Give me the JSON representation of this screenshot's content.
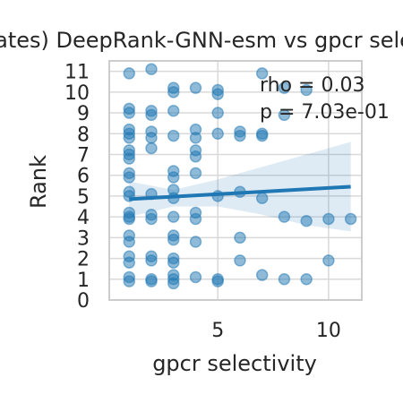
{
  "chart_data": {
    "type": "scatter",
    "title": "(templates) DeepRank-GNN-esm vs gpcr selectivity",
    "xlabel": "gpcr selectivity",
    "ylabel": "Rank",
    "xlim": [
      0.1,
      11.5
    ],
    "ylim": [
      0,
      11.5
    ],
    "xticks": [
      5,
      10
    ],
    "yticks": [
      0,
      1,
      2,
      3,
      4,
      5,
      6,
      7,
      8,
      9,
      10,
      11
    ],
    "grid": true,
    "annotations": [
      "rho = 0.03",
      "p = 7.03e-01"
    ],
    "colors": {
      "point": "#1f77b4",
      "regression_line": "#1f77b4",
      "confidence_band": "#1f77b4",
      "grid": "#d9d9d9",
      "frame": "#cccccc"
    },
    "points": [
      {
        "x": 1,
        "y": 10.9
      },
      {
        "x": 2,
        "y": 11.1
      },
      {
        "x": 7,
        "y": 10.9
      },
      {
        "x": 3,
        "y": 10.2
      },
      {
        "x": 3,
        "y": 10.0
      },
      {
        "x": 4,
        "y": 10.2
      },
      {
        "x": 5,
        "y": 10.1
      },
      {
        "x": 5,
        "y": 9.9
      },
      {
        "x": 8,
        "y": 10.2
      },
      {
        "x": 9,
        "y": 10.1
      },
      {
        "x": 1,
        "y": 9.2
      },
      {
        "x": 1,
        "y": 9.0
      },
      {
        "x": 2,
        "y": 9.1
      },
      {
        "x": 2,
        "y": 8.9
      },
      {
        "x": 3,
        "y": 9.1
      },
      {
        "x": 5,
        "y": 9.0
      },
      {
        "x": 8,
        "y": 8.9
      },
      {
        "x": 1,
        "y": 8.2
      },
      {
        "x": 1,
        "y": 8.0
      },
      {
        "x": 1,
        "y": 7.8
      },
      {
        "x": 2,
        "y": 8.1
      },
      {
        "x": 2,
        "y": 7.8
      },
      {
        "x": 3,
        "y": 7.9
      },
      {
        "x": 4,
        "y": 8.2
      },
      {
        "x": 4,
        "y": 7.8
      },
      {
        "x": 5,
        "y": 8.0
      },
      {
        "x": 6,
        "y": 8.1
      },
      {
        "x": 6,
        "y": 7.9
      },
      {
        "x": 7,
        "y": 8.0
      },
      {
        "x": 7,
        "y": 7.9
      },
      {
        "x": 1,
        "y": 7.2
      },
      {
        "x": 1,
        "y": 7.0
      },
      {
        "x": 1,
        "y": 6.8
      },
      {
        "x": 2,
        "y": 7.3
      },
      {
        "x": 4,
        "y": 7.2
      },
      {
        "x": 4,
        "y": 6.9
      },
      {
        "x": 1,
        "y": 6.1
      },
      {
        "x": 1,
        "y": 5.9
      },
      {
        "x": 3,
        "y": 6.2
      },
      {
        "x": 3,
        "y": 5.9
      },
      {
        "x": 4,
        "y": 6.1
      },
      {
        "x": 1,
        "y": 5.2
      },
      {
        "x": 1,
        "y": 5.0
      },
      {
        "x": 2,
        "y": 5.1
      },
      {
        "x": 3,
        "y": 5.3
      },
      {
        "x": 3,
        "y": 4.9
      },
      {
        "x": 5,
        "y": 5.0
      },
      {
        "x": 6,
        "y": 5.2
      },
      {
        "x": 7,
        "y": 4.9
      },
      {
        "x": 1,
        "y": 4.2
      },
      {
        "x": 1,
        "y": 4.0
      },
      {
        "x": 1,
        "y": 3.9
      },
      {
        "x": 2,
        "y": 4.1
      },
      {
        "x": 2,
        "y": 3.9
      },
      {
        "x": 3,
        "y": 4.0
      },
      {
        "x": 4,
        "y": 4.2
      },
      {
        "x": 4,
        "y": 3.9
      },
      {
        "x": 8,
        "y": 4.0
      },
      {
        "x": 9,
        "y": 3.8
      },
      {
        "x": 10,
        "y": 3.9
      },
      {
        "x": 11,
        "y": 3.9
      },
      {
        "x": 1,
        "y": 3.1
      },
      {
        "x": 1,
        "y": 2.8
      },
      {
        "x": 3,
        "y": 3.1
      },
      {
        "x": 3,
        "y": 2.9
      },
      {
        "x": 4,
        "y": 2.8
      },
      {
        "x": 6,
        "y": 3.0
      },
      {
        "x": 1,
        "y": 2.1
      },
      {
        "x": 1,
        "y": 1.8
      },
      {
        "x": 2,
        "y": 2.1
      },
      {
        "x": 2,
        "y": 1.9
      },
      {
        "x": 3,
        "y": 2.0
      },
      {
        "x": 3,
        "y": 1.8
      },
      {
        "x": 6,
        "y": 1.9
      },
      {
        "x": 10,
        "y": 1.9
      },
      {
        "x": 1,
        "y": 1.1
      },
      {
        "x": 1,
        "y": 0.9
      },
      {
        "x": 2,
        "y": 1.0
      },
      {
        "x": 2,
        "y": 0.9
      },
      {
        "x": 3,
        "y": 1.2
      },
      {
        "x": 3,
        "y": 1.0
      },
      {
        "x": 3,
        "y": 0.8
      },
      {
        "x": 4,
        "y": 1.1
      },
      {
        "x": 5,
        "y": 0.9
      },
      {
        "x": 5,
        "y": 1.0
      },
      {
        "x": 7,
        "y": 1.2
      },
      {
        "x": 8,
        "y": 1.0
      },
      {
        "x": 9,
        "y": 1.0
      }
    ],
    "regression": {
      "x": [
        1,
        11
      ],
      "y": [
        4.85,
        5.45
      ]
    },
    "confidence_band": {
      "x": [
        1,
        3,
        5,
        7,
        9,
        11
      ],
      "lower": [
        4.0,
        4.5,
        4.5,
        4.1,
        3.6,
        3.3
      ],
      "upper": [
        5.7,
        5.3,
        5.8,
        6.4,
        7.0,
        7.6
      ]
    }
  }
}
